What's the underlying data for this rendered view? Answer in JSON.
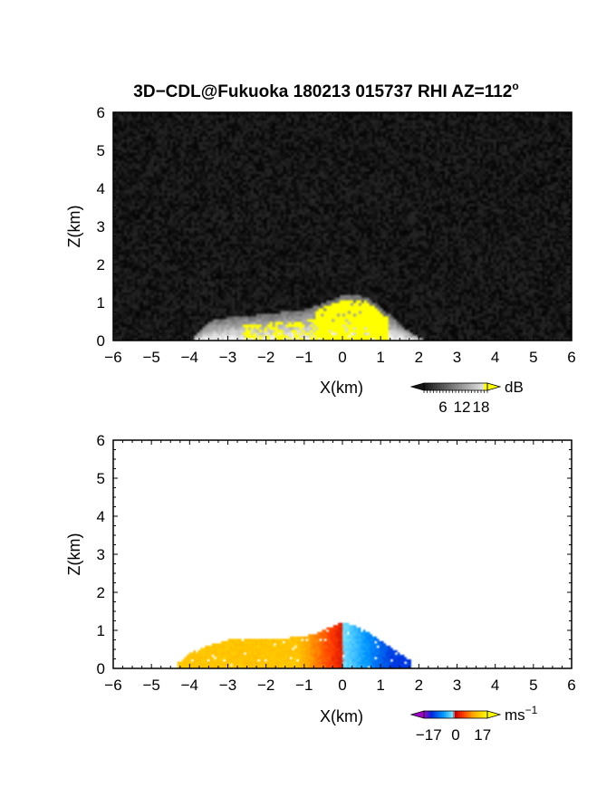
{
  "figure": {
    "title": "3D−CDL@Fukuoka 180213 015737 RHI AZ=112",
    "title_superscript": "o"
  },
  "colors": {
    "frame": "#000000",
    "background_top": "#070707",
    "echo_yellow": "#ffff00"
  },
  "chart_data": [
    {
      "type": "heatmap",
      "quantity": "intensity",
      "xlabel": "X(km)",
      "ylabel": "Z(km)",
      "xlim": [
        -6,
        6
      ],
      "ylim": [
        0,
        6
      ],
      "x_ticks": [
        "−6",
        "−5",
        "−4",
        "−3",
        "−2",
        "−1",
        "0",
        "1",
        "2",
        "3",
        "4",
        "5",
        "6"
      ],
      "y_ticks": [
        "0",
        "1",
        "2",
        "3",
        "4",
        "5",
        "6"
      ],
      "echo_top_profile": {
        "x": [
          -3.9,
          -3.5,
          -3.0,
          -2.5,
          -2.0,
          -1.5,
          -1.0,
          -0.6,
          -0.2,
          0.0,
          0.3,
          0.6,
          0.9,
          1.2,
          1.5,
          1.8,
          2.1
        ],
        "z": [
          0.1,
          0.5,
          0.6,
          0.65,
          0.7,
          0.75,
          0.8,
          0.95,
          1.1,
          1.18,
          1.2,
          1.15,
          0.95,
          0.7,
          0.45,
          0.2,
          0.05
        ]
      },
      "colorbar": {
        "unit": "dB",
        "tick_labels": [
          "6",
          "12",
          "18"
        ],
        "range": [
          0,
          20
        ]
      }
    },
    {
      "type": "heatmap",
      "quantity": "radial velocity",
      "xlabel": "X(km)",
      "ylabel": "Z(km)",
      "xlim": [
        -6,
        6
      ],
      "ylim": [
        0,
        6
      ],
      "x_ticks": [
        "−6",
        "−5",
        "−4",
        "−3",
        "−2",
        "−1",
        "0",
        "1",
        "2",
        "3",
        "4",
        "5",
        "6"
      ],
      "y_ticks": [
        "0",
        "1",
        "2",
        "3",
        "4",
        "5",
        "6"
      ],
      "echo_top_profile": {
        "x": [
          -4.3,
          -4.0,
          -3.5,
          -3.0,
          -2.5,
          -2.0,
          -1.5,
          -1.0,
          -0.6,
          -0.3,
          0.0,
          0.3,
          0.6,
          0.9,
          1.2,
          1.5,
          1.8
        ],
        "z": [
          0.15,
          0.4,
          0.6,
          0.75,
          0.75,
          0.75,
          0.8,
          0.85,
          0.95,
          1.1,
          1.2,
          1.15,
          1.0,
          0.8,
          0.6,
          0.4,
          0.2
        ]
      },
      "velocity_sign": {
        "x_lt_0": "positive (toward warm colors)",
        "x_gt_0": "negative (toward cool colors)"
      },
      "colorbar": {
        "unit": "ms",
        "unit_superscript": "−1",
        "tick_labels": [
          "−17",
          "0",
          "17"
        ],
        "range": [
          -20,
          20
        ]
      }
    }
  ]
}
